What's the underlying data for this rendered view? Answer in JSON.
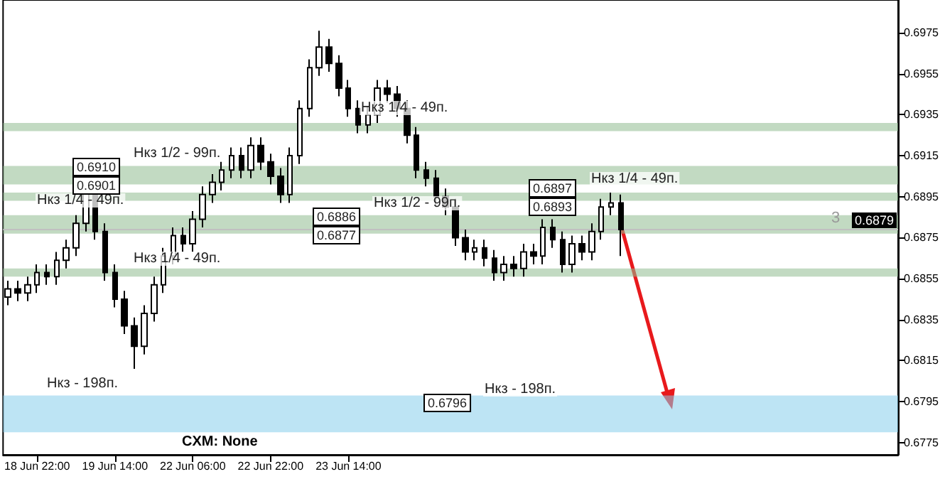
{
  "chart_data": {
    "type": "candlestick",
    "categories": [
      null,
      null,
      null,
      "18 Jun 22:00",
      null,
      null,
      null,
      null,
      null,
      null,
      null,
      "19 Jun 14:00",
      null,
      null,
      null,
      null,
      null,
      null,
      null,
      "22 Jun 06:00",
      null,
      null,
      null,
      null,
      null,
      null,
      null,
      "22 Jun 22:00",
      null,
      null,
      null,
      null,
      null,
      null,
      null,
      "23 Jun 14:00",
      null,
      null,
      null,
      null,
      null,
      null,
      null,
      null,
      null,
      null,
      null,
      null,
      null,
      null,
      null,
      null,
      null,
      null,
      null,
      null,
      null,
      null,
      null,
      null,
      null,
      null,
      null,
      null,
      null,
      null,
      null,
      null,
      null,
      null,
      null,
      null,
      null,
      null,
      null,
      null,
      null,
      null,
      null,
      null,
      null,
      null,
      null,
      null,
      null,
      null,
      null,
      null,
      null,
      null,
      null,
      null
    ],
    "ohlc": [
      [
        0.6846,
        0.6854,
        0.6842,
        0.685
      ],
      [
        0.685,
        0.6854,
        0.6844,
        0.6848
      ],
      [
        0.6848,
        0.6856,
        0.6844,
        0.6852
      ],
      [
        0.6852,
        0.6862,
        0.6848,
        0.6858
      ],
      [
        0.6858,
        0.6862,
        0.6852,
        0.6856
      ],
      [
        0.6856,
        0.6868,
        0.6852,
        0.6864
      ],
      [
        0.6864,
        0.6874,
        0.686,
        0.687
      ],
      [
        0.687,
        0.6886,
        0.6866,
        0.6882
      ],
      [
        0.6882,
        0.6906,
        0.6878,
        0.69
      ],
      [
        0.69,
        0.6904,
        0.6874,
        0.6878
      ],
      [
        0.6878,
        0.6882,
        0.6854,
        0.6858
      ],
      [
        0.6858,
        0.6862,
        0.6841,
        0.6845
      ],
      [
        0.6845,
        0.6849,
        0.6828,
        0.6832
      ],
      [
        0.6832,
        0.6836,
        0.6811,
        0.6822
      ],
      [
        0.6822,
        0.6842,
        0.6818,
        0.6838
      ],
      [
        0.6838,
        0.6856,
        0.6834,
        0.6852
      ],
      [
        0.6852,
        0.687,
        0.6848,
        0.6866
      ],
      [
        0.6866,
        0.688,
        0.6862,
        0.6876
      ],
      [
        0.6876,
        0.688,
        0.6868,
        0.6872
      ],
      [
        0.6872,
        0.6888,
        0.6868,
        0.6884
      ],
      [
        0.6884,
        0.69,
        0.688,
        0.6896
      ],
      [
        0.6896,
        0.6906,
        0.6892,
        0.6902
      ],
      [
        0.6902,
        0.6912,
        0.6898,
        0.6908
      ],
      [
        0.6908,
        0.6919,
        0.6904,
        0.6915
      ],
      [
        0.6915,
        0.6919,
        0.6904,
        0.6908
      ],
      [
        0.6908,
        0.6924,
        0.6904,
        0.692
      ],
      [
        0.692,
        0.6924,
        0.6908,
        0.6912
      ],
      [
        0.6912,
        0.6916,
        0.6901,
        0.6905
      ],
      [
        0.6905,
        0.6909,
        0.6892,
        0.6896
      ],
      [
        0.6896,
        0.6919,
        0.6892,
        0.6915
      ],
      [
        0.6915,
        0.6942,
        0.6911,
        0.6938
      ],
      [
        0.6938,
        0.6962,
        0.6934,
        0.6958
      ],
      [
        0.6958,
        0.6976,
        0.6954,
        0.6968
      ],
      [
        0.6968,
        0.6972,
        0.6956,
        0.696
      ],
      [
        0.696,
        0.6964,
        0.6944,
        0.6948
      ],
      [
        0.6948,
        0.6952,
        0.6934,
        0.6938
      ],
      [
        0.6938,
        0.6942,
        0.6926,
        0.693
      ],
      [
        0.693,
        0.6939,
        0.6926,
        0.6935
      ],
      [
        0.6935,
        0.6952,
        0.6931,
        0.6948
      ],
      [
        0.6948,
        0.6952,
        0.6941,
        0.6945
      ],
      [
        0.6945,
        0.6949,
        0.6934,
        0.6938
      ],
      [
        0.6938,
        0.6942,
        0.6921,
        0.6925
      ],
      [
        0.6925,
        0.6929,
        0.6904,
        0.6908
      ],
      [
        0.6908,
        0.6912,
        0.69,
        0.6904
      ],
      [
        0.6904,
        0.6908,
        0.6891,
        0.6895
      ],
      [
        0.6895,
        0.6899,
        0.6886,
        0.689
      ],
      [
        0.689,
        0.6894,
        0.6871,
        0.6875
      ],
      [
        0.6875,
        0.6879,
        0.6864,
        0.6868
      ],
      [
        0.6868,
        0.6874,
        0.6864,
        0.687
      ],
      [
        0.687,
        0.6874,
        0.6861,
        0.6865
      ],
      [
        0.6865,
        0.6869,
        0.6854,
        0.6858
      ],
      [
        0.6858,
        0.6866,
        0.6854,
        0.6862
      ],
      [
        0.6862,
        0.6866,
        0.6856,
        0.686
      ],
      [
        0.686,
        0.6872,
        0.6856,
        0.6868
      ],
      [
        0.6868,
        0.6872,
        0.6862,
        0.6866
      ],
      [
        0.6866,
        0.6884,
        0.6862,
        0.688
      ],
      [
        0.688,
        0.6884,
        0.687,
        0.6874
      ],
      [
        0.6874,
        0.6878,
        0.6858,
        0.6862
      ],
      [
        0.6862,
        0.6876,
        0.6858,
        0.6872
      ],
      [
        0.6872,
        0.6876,
        0.6864,
        0.6868
      ],
      [
        0.6868,
        0.6882,
        0.6864,
        0.6878
      ],
      [
        0.6878,
        0.6894,
        0.6874,
        0.689
      ],
      [
        0.689,
        0.6897,
        0.6886,
        0.6892
      ],
      [
        0.6892,
        0.6896,
        0.6866,
        0.6879
      ],
      null,
      null,
      null,
      null,
      null,
      null,
      null,
      null,
      null,
      null,
      null,
      null,
      null,
      null,
      null,
      null,
      null,
      null,
      null,
      null,
      null,
      null,
      null,
      null,
      null,
      null,
      null,
      null
    ],
    "ylim": [
      0.6769,
      0.6991
    ],
    "yticks": [
      0.6775,
      0.6795,
      0.6815,
      0.6835,
      0.6855,
      0.6875,
      0.6895,
      0.6915,
      0.6935,
      0.6955,
      0.6975
    ],
    "grid": false,
    "ref_lines": [
      {
        "axis": "y",
        "value": 0.6879,
        "label": "0.6879",
        "color": "#c0c0c0",
        "line_style": "solid"
      }
    ],
    "bands": [
      {
        "axis": "y",
        "from": 0.678,
        "to": 0.6798,
        "color": "#87ceeb"
      },
      {
        "axis": "y",
        "from": 0.6901,
        "to": 0.691,
        "color": "#8fbc8f"
      },
      {
        "axis": "y",
        "from": 0.6877,
        "to": 0.6886,
        "color": "#8fbc8f"
      },
      {
        "axis": "y",
        "from": 0.6893,
        "to": 0.6897,
        "color": "#8fbc8f"
      },
      {
        "axis": "y",
        "from": 0.6927,
        "to": 0.6931,
        "color": "#8fbc8f"
      },
      {
        "axis": "y",
        "from": 0.6856,
        "to": 0.686,
        "color": "#8fbc8f"
      }
    ],
    "annotations": [
      "Нкз 1/2 - 99п.",
      "Нкз 1/4 - 49п.",
      "Нкз 1/4 - 49п.",
      "Нкз - 198п.",
      "Нкз 1/4 - 49п.",
      "Нкз 1/2 - 99п.",
      "Нкз 1/4 - 49п.",
      "Нкз - 198п.",
      "0.6910",
      "0.6901",
      "0.6886",
      "0.6877",
      "0.6897",
      "0.6893",
      "0.6796",
      "CXM: None",
      "3"
    ]
  }
}
